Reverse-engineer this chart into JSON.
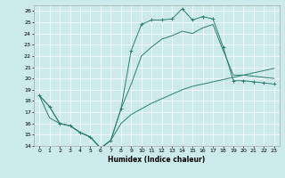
{
  "xlabel": "Humidex (Indice chaleur)",
  "background_color": "#cce9ec",
  "grid_color": "#b0d8dc",
  "line_color": "#2e7d6e",
  "xlim": [
    -0.5,
    23.5
  ],
  "ylim": [
    14,
    26.5
  ],
  "yticks": [
    14,
    15,
    16,
    17,
    18,
    19,
    20,
    21,
    22,
    23,
    24,
    25,
    26
  ],
  "xticks": [
    0,
    1,
    2,
    3,
    4,
    5,
    6,
    7,
    8,
    9,
    10,
    11,
    12,
    13,
    14,
    15,
    16,
    17,
    18,
    19,
    20,
    21,
    22,
    23
  ],
  "series": [
    {
      "x": [
        0,
        1,
        2,
        3,
        4,
        5,
        6,
        7,
        8,
        9,
        10,
        11,
        12,
        13,
        14,
        15,
        16,
        17,
        18,
        19,
        20,
        21,
        22,
        23
      ],
      "y": [
        18.5,
        17.5,
        16.0,
        15.8,
        15.2,
        14.8,
        13.8,
        14.5,
        17.3,
        22.5,
        24.8,
        25.2,
        25.2,
        25.3,
        26.2,
        25.2,
        25.5,
        25.3,
        22.8,
        19.8,
        19.8,
        19.7,
        19.6,
        19.5
      ],
      "marker": "+"
    },
    {
      "x": [
        0,
        1,
        2,
        3,
        4,
        5,
        6,
        7,
        8,
        9,
        10,
        11,
        12,
        13,
        14,
        15,
        16,
        17,
        18,
        19,
        20,
        21,
        22,
        23
      ],
      "y": [
        18.5,
        17.5,
        16.0,
        15.8,
        15.2,
        14.8,
        13.8,
        14.5,
        17.3,
        19.5,
        22.0,
        22.8,
        23.5,
        23.8,
        24.2,
        24.0,
        24.5,
        24.8,
        22.5,
        20.3,
        20.3,
        20.2,
        20.1,
        20.0
      ],
      "marker": null
    },
    {
      "x": [
        0,
        1,
        2,
        3,
        4,
        5,
        6,
        7,
        8,
        9,
        10,
        11,
        12,
        13,
        14,
        15,
        16,
        17,
        18,
        19,
        20,
        21,
        22,
        23
      ],
      "y": [
        18.5,
        16.5,
        16.0,
        15.8,
        15.2,
        14.8,
        13.8,
        14.5,
        16.0,
        16.8,
        17.3,
        17.8,
        18.2,
        18.6,
        19.0,
        19.3,
        19.5,
        19.7,
        19.9,
        20.1,
        20.3,
        20.5,
        20.7,
        20.9
      ],
      "marker": null
    }
  ]
}
